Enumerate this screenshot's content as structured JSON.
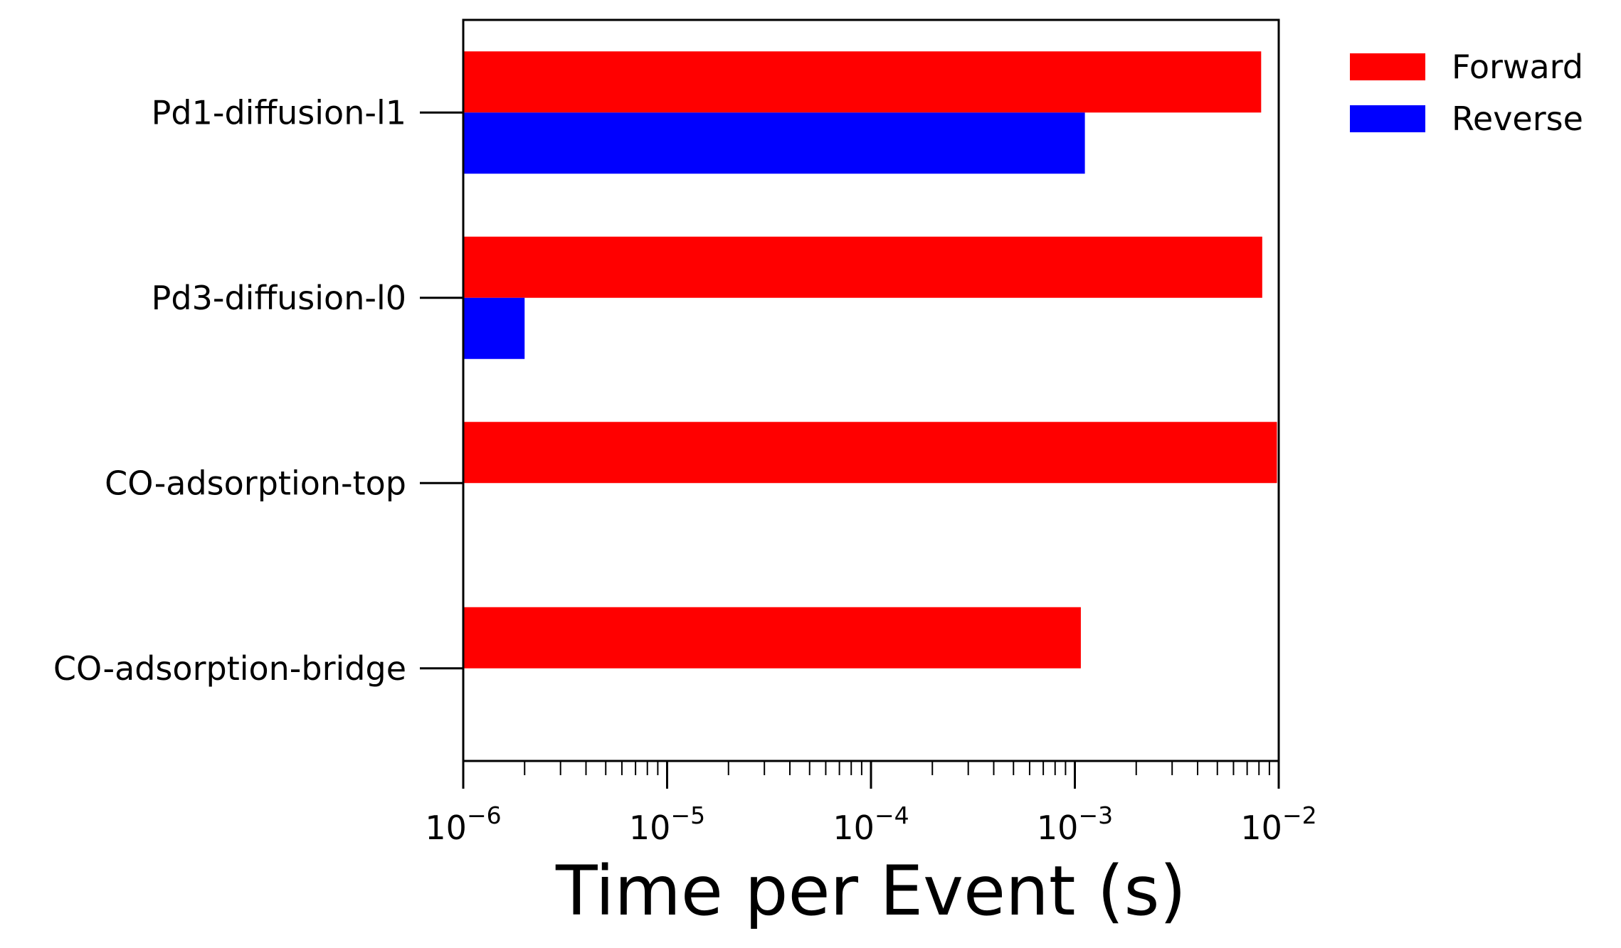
{
  "chart_data": {
    "type": "bar",
    "orientation": "horizontal",
    "title": "",
    "xlabel": "Time per Event (s)",
    "ylabel": "",
    "xscale": "log",
    "xlim": [
      1e-06,
      0.01
    ],
    "x_ticks": [
      {
        "base": "10",
        "exp": "−6",
        "value": 1e-06
      },
      {
        "base": "10",
        "exp": "−5",
        "value": 1e-05
      },
      {
        "base": "10",
        "exp": "−4",
        "value": 0.0001
      },
      {
        "base": "10",
        "exp": "−3",
        "value": 0.001
      },
      {
        "base": "10",
        "exp": "−2",
        "value": 0.01
      }
    ],
    "categories": [
      "Pd1-diffusion-l1",
      "Pd3-diffusion-l0",
      "CO-adsorption-top",
      "CO-adsorption-bridge"
    ],
    "series": [
      {
        "name": "Forward",
        "color": "#ff0000",
        "values": [
          0.0082,
          0.0083,
          0.0098,
          0.00107
        ]
      },
      {
        "name": "Reverse",
        "color": "#0000ff",
        "values": [
          0.00112,
          2e-06,
          null,
          null
        ]
      }
    ],
    "legend_position": "outside-top-right",
    "grid": false
  }
}
